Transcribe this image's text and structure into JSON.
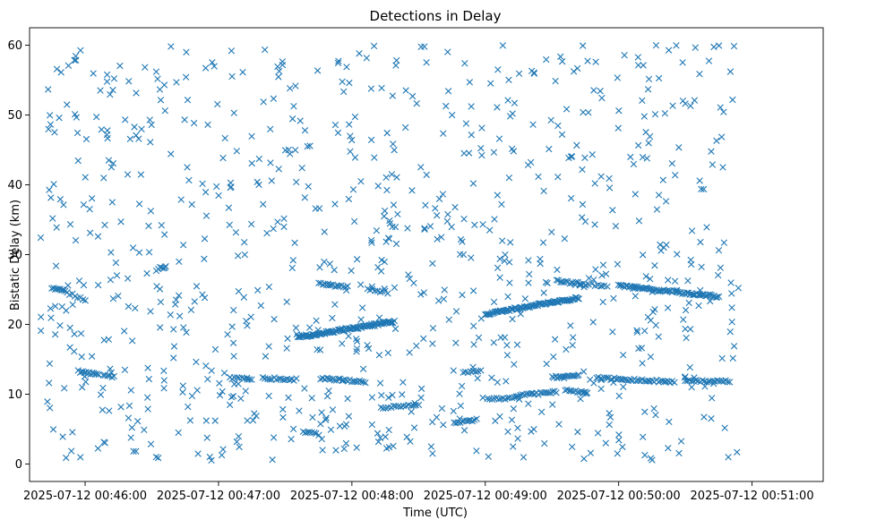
{
  "chart_data": {
    "type": "scatter",
    "title": "Detections in Delay",
    "xlabel": "Time (UTC)",
    "ylabel": "Bistatic Delay (km)",
    "x_unit": "seconds after 2025-07-12 00:45:00 UTC",
    "xlim": [
      35,
      392
    ],
    "ylim": [
      -2.5,
      62.5
    ],
    "x_ticks": [
      {
        "value": 60,
        "label": "2025-07-12 00:46:00"
      },
      {
        "value": 120,
        "label": "2025-07-12 00:47:00"
      },
      {
        "value": 180,
        "label": "2025-07-12 00:48:00"
      },
      {
        "value": 240,
        "label": "2025-07-12 00:49:00"
      },
      {
        "value": 300,
        "label": "2025-07-12 00:50:00"
      },
      {
        "value": 360,
        "label": "2025-07-12 00:51:00"
      }
    ],
    "y_ticks": [
      {
        "value": 0,
        "label": "0"
      },
      {
        "value": 10,
        "label": "10"
      },
      {
        "value": 20,
        "label": "20"
      },
      {
        "value": 30,
        "label": "30"
      },
      {
        "value": 40,
        "label": "40"
      },
      {
        "value": 50,
        "label": "50"
      },
      {
        "value": 60,
        "label": "60"
      }
    ],
    "marker": "x",
    "color": "#1f77b4",
    "series": [
      {
        "name": "Detections",
        "tracks": [
          {
            "x_start": 45,
            "x_end": 51,
            "y_start": 25.3,
            "y_end": 24.8,
            "n": 9
          },
          {
            "x_start": 52,
            "x_end": 60,
            "y_start": 24.5,
            "y_end": 23.5,
            "n": 8
          },
          {
            "x_start": 57,
            "x_end": 66,
            "y_start": 13.3,
            "y_end": 12.8,
            "n": 14
          },
          {
            "x_start": 68,
            "x_end": 73,
            "y_start": 12.7,
            "y_end": 12.4,
            "n": 6
          },
          {
            "x_start": 93,
            "x_end": 96,
            "y_start": 28.0,
            "y_end": 28.2,
            "n": 5
          },
          {
            "x_start": 125,
            "x_end": 135,
            "y_start": 12.3,
            "y_end": 12.2,
            "n": 10
          },
          {
            "x_start": 140,
            "x_end": 155,
            "y_start": 12.3,
            "y_end": 12.1,
            "n": 16
          },
          {
            "x_start": 156,
            "x_end": 199,
            "y_start": 18.2,
            "y_end": 20.4,
            "n": 95
          },
          {
            "x_start": 158,
            "x_end": 165,
            "y_start": 4.5,
            "y_end": 4.3,
            "n": 8
          },
          {
            "x_start": 165,
            "x_end": 178,
            "y_start": 25.8,
            "y_end": 25.4,
            "n": 15
          },
          {
            "x_start": 166,
            "x_end": 186,
            "y_start": 12.3,
            "y_end": 11.8,
            "n": 24
          },
          {
            "x_start": 187,
            "x_end": 196,
            "y_start": 25.0,
            "y_end": 24.6,
            "n": 9
          },
          {
            "x_start": 193,
            "x_end": 210,
            "y_start": 8.1,
            "y_end": 8.4,
            "n": 16
          },
          {
            "x_start": 226,
            "x_end": 236,
            "y_start": 5.8,
            "y_end": 6.4,
            "n": 12
          },
          {
            "x_start": 230,
            "x_end": 238,
            "y_start": 13.1,
            "y_end": 13.4,
            "n": 8
          },
          {
            "x_start": 240,
            "x_end": 282,
            "y_start": 21.5,
            "y_end": 23.8,
            "n": 85
          },
          {
            "x_start": 241,
            "x_end": 254,
            "y_start": 9.3,
            "y_end": 9.5,
            "n": 14
          },
          {
            "x_start": 255,
            "x_end": 272,
            "y_start": 9.8,
            "y_end": 10.3,
            "n": 20
          },
          {
            "x_start": 270,
            "x_end": 282,
            "y_start": 12.4,
            "y_end": 12.6,
            "n": 16
          },
          {
            "x_start": 272,
            "x_end": 285,
            "y_start": 26.2,
            "y_end": 25.8,
            "n": 16
          },
          {
            "x_start": 276,
            "x_end": 286,
            "y_start": 10.6,
            "y_end": 10.3,
            "n": 12
          },
          {
            "x_start": 285,
            "x_end": 295,
            "y_start": 25.7,
            "y_end": 25.6,
            "n": 8
          },
          {
            "x_start": 290,
            "x_end": 325,
            "y_start": 12.3,
            "y_end": 11.8,
            "n": 40
          },
          {
            "x_start": 300,
            "x_end": 345,
            "y_start": 25.5,
            "y_end": 24.0,
            "n": 70
          },
          {
            "x_start": 330,
            "x_end": 350,
            "y_start": 11.9,
            "y_end": 11.8,
            "n": 22
          }
        ],
        "noise": {
          "count": 880,
          "x_range": [
            40,
            354
          ],
          "y_range": [
            0.5,
            60
          ]
        }
      }
    ]
  }
}
